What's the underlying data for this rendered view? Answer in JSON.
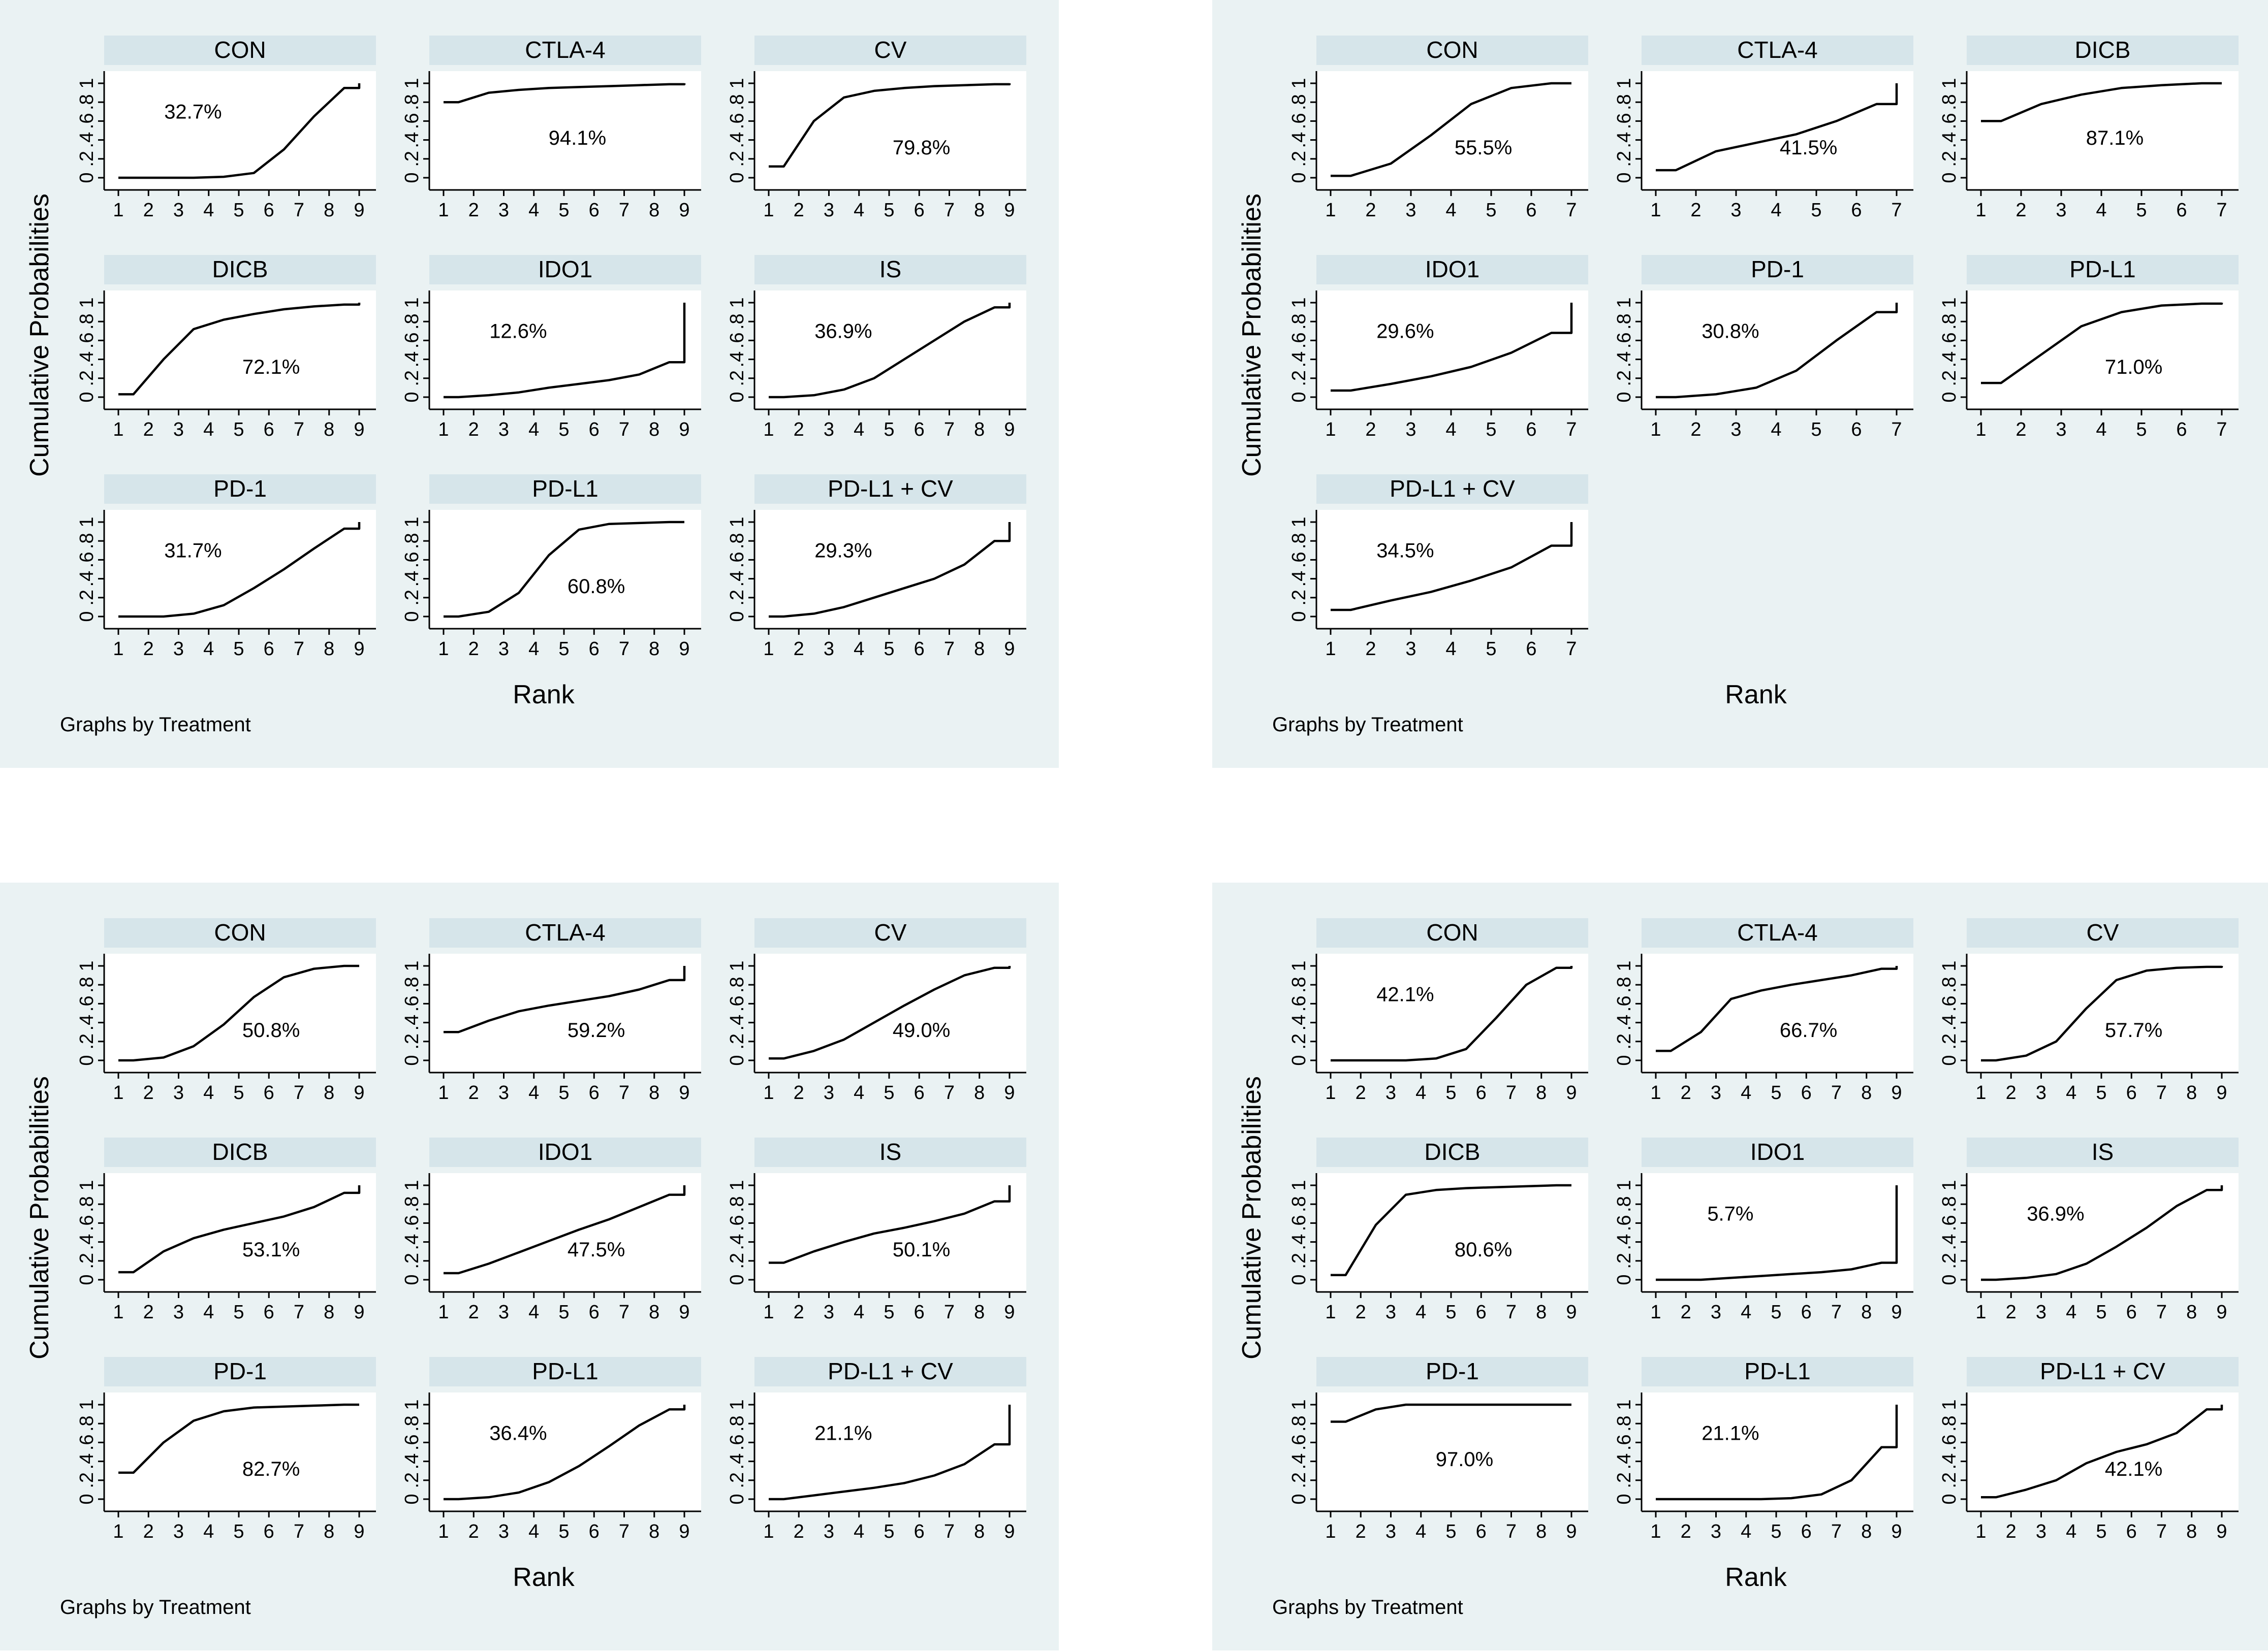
{
  "chart_data": [
    {
      "type": "line",
      "xlabel": "Rank",
      "ylabel": "Cumulative Probabilities",
      "note": "Graphs by Treatment",
      "y_ticks": [
        "0",
        ".2",
        ".4",
        ".6",
        ".8",
        "1"
      ],
      "ylim": [
        0,
        1
      ],
      "subplots": [
        {
          "name": "CON",
          "sucra": "32.7%",
          "x": [
            1,
            2,
            3,
            4,
            5,
            6,
            7,
            8,
            9
          ],
          "values": [
            0,
            0,
            0,
            0.01,
            0.05,
            0.3,
            0.65,
            0.95,
            1.0
          ]
        },
        {
          "name": "CTLA-4",
          "sucra": "94.1%",
          "x": [
            1,
            2,
            3,
            4,
            5,
            6,
            7,
            8,
            9
          ],
          "values": [
            0.8,
            0.9,
            0.93,
            0.95,
            0.96,
            0.97,
            0.98,
            0.99,
            1.0
          ]
        },
        {
          "name": "CV",
          "sucra": "79.8%",
          "x": [
            1,
            2,
            3,
            4,
            5,
            6,
            7,
            8,
            9
          ],
          "values": [
            0.12,
            0.6,
            0.85,
            0.92,
            0.95,
            0.97,
            0.98,
            0.99,
            1.0
          ]
        },
        {
          "name": "DICB",
          "sucra": "72.1%",
          "x": [
            1,
            2,
            3,
            4,
            5,
            6,
            7,
            8,
            9
          ],
          "values": [
            0.03,
            0.4,
            0.72,
            0.82,
            0.88,
            0.93,
            0.96,
            0.98,
            1.0
          ]
        },
        {
          "name": "IDO1",
          "sucra": "12.6%",
          "x": [
            1,
            2,
            3,
            4,
            5,
            6,
            7,
            8,
            9
          ],
          "values": [
            0,
            0.02,
            0.05,
            0.1,
            0.14,
            0.18,
            0.24,
            0.37,
            1.0
          ]
        },
        {
          "name": "IS",
          "sucra": "36.9%",
          "x": [
            1,
            2,
            3,
            4,
            5,
            6,
            7,
            8,
            9
          ],
          "values": [
            0,
            0.02,
            0.08,
            0.2,
            0.4,
            0.6,
            0.8,
            0.95,
            1.0
          ]
        },
        {
          "name": "PD-1",
          "sucra": "31.7%",
          "x": [
            1,
            2,
            3,
            4,
            5,
            6,
            7,
            8,
            9
          ],
          "values": [
            0,
            0,
            0.03,
            0.12,
            0.3,
            0.5,
            0.72,
            0.93,
            1.0
          ]
        },
        {
          "name": "PD-L1",
          "sucra": "60.8%",
          "x": [
            1,
            2,
            3,
            4,
            5,
            6,
            7,
            8,
            9
          ],
          "values": [
            0,
            0.05,
            0.25,
            0.65,
            0.92,
            0.98,
            0.99,
            1.0,
            1.0
          ]
        },
        {
          "name": "PD-L1 + CV",
          "sucra": "29.3%",
          "x": [
            1,
            2,
            3,
            4,
            5,
            6,
            7,
            8,
            9
          ],
          "values": [
            0,
            0.03,
            0.1,
            0.2,
            0.3,
            0.4,
            0.55,
            0.8,
            1.0
          ]
        }
      ]
    },
    {
      "type": "line",
      "xlabel": "Rank",
      "ylabel": "Cumulative Probabilities",
      "note": "Graphs by Treatment",
      "y_ticks": [
        "0",
        ".2",
        ".4",
        ".6",
        ".8",
        "1"
      ],
      "ylim": [
        0,
        1
      ],
      "subplots": [
        {
          "name": "CON",
          "sucra": "55.5%",
          "x": [
            1,
            2,
            3,
            4,
            5,
            6,
            7
          ],
          "values": [
            0.02,
            0.15,
            0.45,
            0.78,
            0.95,
            1.0,
            1.0
          ]
        },
        {
          "name": "CTLA-4",
          "sucra": "41.5%",
          "x": [
            1,
            2,
            3,
            4,
            5,
            6,
            7
          ],
          "values": [
            0.08,
            0.28,
            0.37,
            0.46,
            0.6,
            0.78,
            1.0
          ]
        },
        {
          "name": "DICB",
          "sucra": "87.1%",
          "x": [
            1,
            2,
            3,
            4,
            5,
            6,
            7
          ],
          "values": [
            0.6,
            0.78,
            0.88,
            0.95,
            0.98,
            1.0,
            1.0
          ]
        },
        {
          "name": "IDO1",
          "sucra": "29.6%",
          "x": [
            1,
            2,
            3,
            4,
            5,
            6,
            7
          ],
          "values": [
            0.07,
            0.14,
            0.22,
            0.32,
            0.47,
            0.68,
            1.0
          ]
        },
        {
          "name": "PD-1",
          "sucra": "30.8%",
          "x": [
            1,
            2,
            3,
            4,
            5,
            6,
            7
          ],
          "values": [
            0,
            0.03,
            0.1,
            0.28,
            0.6,
            0.9,
            1.0
          ]
        },
        {
          "name": "PD-L1",
          "sucra": "71.0%",
          "x": [
            1,
            2,
            3,
            4,
            5,
            6,
            7
          ],
          "values": [
            0.15,
            0.45,
            0.75,
            0.9,
            0.97,
            0.99,
            1.0
          ]
        },
        {
          "name": "PD-L1 + CV",
          "sucra": "34.5%",
          "x": [
            1,
            2,
            3,
            4,
            5,
            6,
            7
          ],
          "values": [
            0.07,
            0.17,
            0.26,
            0.38,
            0.52,
            0.75,
            1.0
          ]
        }
      ]
    },
    {
      "type": "line",
      "xlabel": "Rank",
      "ylabel": "Cumulative Probabilities",
      "note": "Graphs by Treatment",
      "y_ticks": [
        "0",
        ".2",
        ".4",
        ".6",
        ".8",
        "1"
      ],
      "ylim": [
        0,
        1
      ],
      "subplots": [
        {
          "name": "CON",
          "sucra": "50.8%",
          "x": [
            1,
            2,
            3,
            4,
            5,
            6,
            7,
            8,
            9
          ],
          "values": [
            0,
            0.03,
            0.15,
            0.38,
            0.67,
            0.88,
            0.97,
            1.0,
            1.0
          ]
        },
        {
          "name": "CTLA-4",
          "sucra": "59.2%",
          "x": [
            1,
            2,
            3,
            4,
            5,
            6,
            7,
            8,
            9
          ],
          "values": [
            0.3,
            0.42,
            0.52,
            0.58,
            0.63,
            0.68,
            0.75,
            0.85,
            1.0
          ]
        },
        {
          "name": "CV",
          "sucra": "49.0%",
          "x": [
            1,
            2,
            3,
            4,
            5,
            6,
            7,
            8,
            9
          ],
          "values": [
            0.02,
            0.1,
            0.22,
            0.4,
            0.58,
            0.75,
            0.9,
            0.98,
            1.0
          ]
        },
        {
          "name": "DICB",
          "sucra": "53.1%",
          "x": [
            1,
            2,
            3,
            4,
            5,
            6,
            7,
            8,
            9
          ],
          "values": [
            0.08,
            0.3,
            0.44,
            0.53,
            0.6,
            0.67,
            0.77,
            0.92,
            1.0
          ]
        },
        {
          "name": "IDO1",
          "sucra": "47.5%",
          "x": [
            1,
            2,
            3,
            4,
            5,
            6,
            7,
            8,
            9
          ],
          "values": [
            0.07,
            0.17,
            0.29,
            0.41,
            0.53,
            0.64,
            0.77,
            0.9,
            1.0
          ]
        },
        {
          "name": "IS",
          "sucra": "50.1%",
          "x": [
            1,
            2,
            3,
            4,
            5,
            6,
            7,
            8,
            9
          ],
          "values": [
            0.18,
            0.3,
            0.4,
            0.49,
            0.55,
            0.62,
            0.7,
            0.83,
            1.0
          ]
        },
        {
          "name": "PD-1",
          "sucra": "82.7%",
          "x": [
            1,
            2,
            3,
            4,
            5,
            6,
            7,
            8,
            9
          ],
          "values": [
            0.28,
            0.6,
            0.83,
            0.93,
            0.97,
            0.98,
            0.99,
            1.0,
            1.0
          ]
        },
        {
          "name": "PD-L1",
          "sucra": "36.4%",
          "x": [
            1,
            2,
            3,
            4,
            5,
            6,
            7,
            8,
            9
          ],
          "values": [
            0,
            0.02,
            0.07,
            0.18,
            0.35,
            0.56,
            0.78,
            0.95,
            1.0
          ]
        },
        {
          "name": "PD-L1 + CV",
          "sucra": "21.1%",
          "x": [
            1,
            2,
            3,
            4,
            5,
            6,
            7,
            8,
            9
          ],
          "values": [
            0,
            0.04,
            0.08,
            0.12,
            0.17,
            0.25,
            0.37,
            0.58,
            1.0
          ]
        }
      ]
    },
    {
      "type": "line",
      "xlabel": "Rank",
      "ylabel": "Cumulative Probabilities",
      "note": "Graphs by Treatment",
      "y_ticks": [
        "0",
        ".2",
        ".4",
        ".6",
        ".8",
        "1"
      ],
      "ylim": [
        0,
        1
      ],
      "subplots": [
        {
          "name": "CON",
          "sucra": "42.1%",
          "x": [
            1,
            2,
            3,
            4,
            5,
            6,
            7,
            8,
            9
          ],
          "values": [
            0,
            0,
            0,
            0.02,
            0.12,
            0.45,
            0.8,
            0.98,
            1.0
          ]
        },
        {
          "name": "CTLA-4",
          "sucra": "66.7%",
          "x": [
            1,
            2,
            3,
            4,
            5,
            6,
            7,
            8,
            9
          ],
          "values": [
            0.1,
            0.3,
            0.65,
            0.74,
            0.8,
            0.85,
            0.9,
            0.97,
            1.0
          ]
        },
        {
          "name": "CV",
          "sucra": "57.7%",
          "x": [
            1,
            2,
            3,
            4,
            5,
            6,
            7,
            8,
            9
          ],
          "values": [
            0,
            0.05,
            0.2,
            0.55,
            0.85,
            0.95,
            0.98,
            0.99,
            1.0
          ]
        },
        {
          "name": "DICB",
          "sucra": "80.6%",
          "x": [
            1,
            2,
            3,
            4,
            5,
            6,
            7,
            8,
            9
          ],
          "values": [
            0.05,
            0.58,
            0.9,
            0.95,
            0.97,
            0.98,
            0.99,
            1.0,
            1.0
          ]
        },
        {
          "name": "IDO1",
          "sucra": "5.7%",
          "x": [
            1,
            2,
            3,
            4,
            5,
            6,
            7,
            8,
            9
          ],
          "values": [
            0,
            0,
            0.02,
            0.04,
            0.06,
            0.08,
            0.11,
            0.18,
            1.0
          ]
        },
        {
          "name": "IS",
          "sucra": "36.9%",
          "x": [
            1,
            2,
            3,
            4,
            5,
            6,
            7,
            8,
            9
          ],
          "values": [
            0,
            0.02,
            0.06,
            0.17,
            0.35,
            0.55,
            0.78,
            0.95,
            1.0
          ]
        },
        {
          "name": "PD-1",
          "sucra": "97.0%",
          "x": [
            1,
            2,
            3,
            4,
            5,
            6,
            7,
            8,
            9
          ],
          "values": [
            0.82,
            0.95,
            1.0,
            1.0,
            1.0,
            1.0,
            1.0,
            1.0,
            1.0
          ]
        },
        {
          "name": "PD-L1",
          "sucra": "21.1%",
          "x": [
            1,
            2,
            3,
            4,
            5,
            6,
            7,
            8,
            9
          ],
          "values": [
            0,
            0,
            0,
            0,
            0.01,
            0.05,
            0.2,
            0.55,
            1.0
          ]
        },
        {
          "name": "PD-L1 + CV",
          "sucra": "42.1%",
          "x": [
            1,
            2,
            3,
            4,
            5,
            6,
            7,
            8,
            9
          ],
          "values": [
            0.02,
            0.1,
            0.2,
            0.38,
            0.5,
            0.58,
            0.7,
            0.95,
            1.0
          ]
        }
      ]
    }
  ]
}
